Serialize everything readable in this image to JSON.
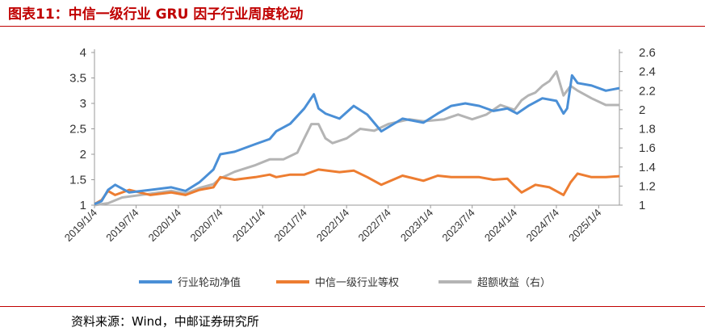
{
  "header": {
    "title": "图表11：中信一级行业 GRU 因子行业周度轮动"
  },
  "footer": {
    "source": "资料来源：Wind，中邮证券研究所"
  },
  "colors": {
    "accent": "#c00000",
    "blue": "#4a8fd6",
    "orange": "#ed7d31",
    "gray": "#b4b4b4"
  },
  "chart_data": {
    "type": "line",
    "x_ticks": [
      "2019/1/4",
      "2019/7/4",
      "2020/1/4",
      "2020/7/4",
      "2021/1/4",
      "2021/7/4",
      "2022/1/4",
      "2022/7/4",
      "2023/1/4",
      "2023/7/4",
      "2024/1/4",
      "2024/7/4",
      "2025/1/4"
    ],
    "x_range": [
      "2019/1/4",
      "2025/4/4"
    ],
    "y_left": {
      "ticks": [
        "1",
        "1.5",
        "2",
        "2.5",
        "3",
        "3.5",
        "4"
      ],
      "range": [
        1,
        4
      ]
    },
    "y_right": {
      "ticks": [
        "1",
        "1.2",
        "1.4",
        "1.6",
        "1.8",
        "2",
        "2.2",
        "2.4",
        "2.6"
      ],
      "range": [
        1,
        2.6
      ]
    },
    "grid": false,
    "legend_position": "bottom",
    "series": [
      {
        "name": "行业轮动净值",
        "axis": "left",
        "color": "#4a8fd6",
        "x": [
          "2019/1/4",
          "2019/2/4",
          "2019/3/4",
          "2019/4/4",
          "2019/6/4",
          "2019/9/4",
          "2019/12/4",
          "2020/2/4",
          "2020/4/4",
          "2020/6/4",
          "2020/7/4",
          "2020/9/4",
          "2020/12/4",
          "2021/2/4",
          "2021/3/4",
          "2021/5/4",
          "2021/7/4",
          "2021/8/15",
          "2021/9/4",
          "2021/10/4",
          "2021/12/4",
          "2022/2/4",
          "2022/4/4",
          "2022/6/4",
          "2022/9/4",
          "2022/12/4",
          "2023/2/4",
          "2023/4/4",
          "2023/6/4",
          "2023/8/4",
          "2023/10/4",
          "2023/12/4",
          "2024/1/15",
          "2024/3/4",
          "2024/5/4",
          "2024/7/4",
          "2024/8/4",
          "2024/8/20",
          "2024/9/10",
          "2024/10/4",
          "2024/12/4",
          "2025/2/4",
          "2025/4/4"
        ],
        "values": [
          1.02,
          1.08,
          1.3,
          1.4,
          1.25,
          1.3,
          1.35,
          1.28,
          1.45,
          1.7,
          2.0,
          2.05,
          2.2,
          2.3,
          2.45,
          2.6,
          2.9,
          3.18,
          2.9,
          2.8,
          2.7,
          2.95,
          2.78,
          2.45,
          2.7,
          2.62,
          2.8,
          2.95,
          3.0,
          2.95,
          2.85,
          2.9,
          2.8,
          2.95,
          3.1,
          3.05,
          2.8,
          2.9,
          3.55,
          3.4,
          3.35,
          3.25,
          3.3
        ]
      },
      {
        "name": "中信一级行业等权",
        "axis": "left",
        "color": "#ed7d31",
        "x": [
          "2019/1/4",
          "2019/2/4",
          "2019/3/4",
          "2019/4/4",
          "2019/6/4",
          "2019/9/4",
          "2019/12/4",
          "2020/2/4",
          "2020/4/4",
          "2020/6/4",
          "2020/7/4",
          "2020/9/4",
          "2020/12/4",
          "2021/2/4",
          "2021/3/4",
          "2021/5/4",
          "2021/7/4",
          "2021/9/4",
          "2021/12/4",
          "2022/2/4",
          "2022/4/4",
          "2022/6/4",
          "2022/9/4",
          "2022/12/4",
          "2023/2/4",
          "2023/4/4",
          "2023/6/4",
          "2023/8/4",
          "2023/10/4",
          "2023/12/4",
          "2024/1/4",
          "2024/2/4",
          "2024/4/4",
          "2024/6/4",
          "2024/8/4",
          "2024/9/4",
          "2024/10/4",
          "2024/12/4",
          "2025/2/4",
          "2025/4/4"
        ],
        "values": [
          1.02,
          1.1,
          1.28,
          1.2,
          1.3,
          1.2,
          1.25,
          1.2,
          1.3,
          1.35,
          1.55,
          1.5,
          1.55,
          1.6,
          1.55,
          1.6,
          1.6,
          1.7,
          1.65,
          1.68,
          1.55,
          1.4,
          1.58,
          1.48,
          1.58,
          1.55,
          1.55,
          1.55,
          1.5,
          1.52,
          1.38,
          1.25,
          1.4,
          1.35,
          1.2,
          1.45,
          1.62,
          1.55,
          1.55,
          1.57
        ]
      },
      {
        "name": "超额收益（右）",
        "axis": "right",
        "color": "#b4b4b4",
        "x": [
          "2019/1/4",
          "2019/3/4",
          "2019/5/4",
          "2019/7/4",
          "2019/9/4",
          "2019/12/4",
          "2020/2/4",
          "2020/4/4",
          "2020/6/4",
          "2020/7/4",
          "2020/9/4",
          "2020/12/4",
          "2021/1/4",
          "2021/2/4",
          "2021/4/4",
          "2021/6/4",
          "2021/7/4",
          "2021/8/4",
          "2021/9/4",
          "2021/10/4",
          "2021/11/4",
          "2022/1/4",
          "2022/3/4",
          "2022/5/4",
          "2022/7/4",
          "2022/10/4",
          "2022/12/4",
          "2023/3/4",
          "2023/5/4",
          "2023/7/4",
          "2023/9/4",
          "2023/11/4",
          "2024/1/4",
          "2024/2/4",
          "2024/3/4",
          "2024/4/4",
          "2024/5/4",
          "2024/6/4",
          "2024/7/4",
          "2024/8/4",
          "2024/9/4",
          "2024/10/4",
          "2024/12/4",
          "2025/2/4",
          "2025/4/4"
        ],
        "values": [
          1.0,
          1.02,
          1.08,
          1.1,
          1.12,
          1.15,
          1.12,
          1.18,
          1.22,
          1.28,
          1.35,
          1.42,
          1.45,
          1.48,
          1.48,
          1.55,
          1.7,
          1.85,
          1.85,
          1.7,
          1.65,
          1.7,
          1.8,
          1.78,
          1.85,
          1.9,
          1.88,
          1.9,
          1.95,
          1.9,
          1.95,
          2.05,
          2.0,
          2.1,
          2.15,
          2.18,
          2.25,
          2.3,
          2.4,
          2.15,
          2.25,
          2.2,
          2.12,
          2.05,
          2.05
        ]
      }
    ]
  }
}
